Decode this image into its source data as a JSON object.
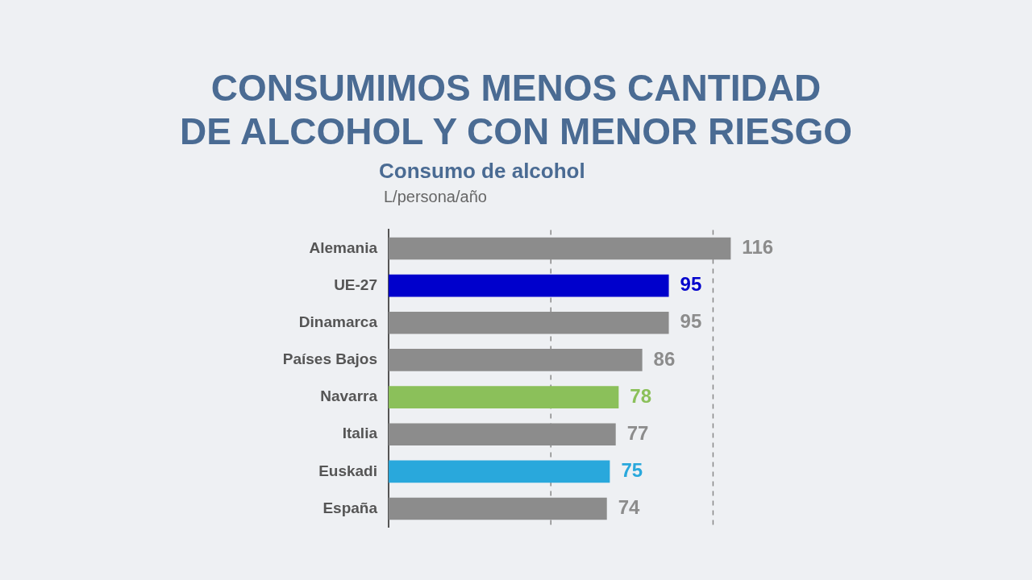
{
  "chart_data": {
    "type": "bar",
    "orientation": "horizontal",
    "title": "CONSUMIMOS MENOS CANTIDAD\nDE ALCOHOL Y CON MENOR RIESGO",
    "subtitle": "Consumo de alcohol",
    "xlabel": "L/persona/año",
    "categories": [
      "Alemania",
      "UE-27",
      "Dinamarca",
      "Países Bajos",
      "Navarra",
      "Italia",
      "Euskadi",
      "España"
    ],
    "values": [
      116,
      95,
      95,
      86,
      78,
      77,
      75,
      74
    ],
    "colors": [
      "#8c8c8c",
      "#0000cc",
      "#8c8c8c",
      "#8c8c8c",
      "#8bc05a",
      "#8c8c8c",
      "#29a8dc",
      "#8c8c8c"
    ],
    "tick_labels": "y",
    "data_labels": true,
    "ref_lines": [
      {
        "axis": "x",
        "value": 55,
        "line_style": "dashed",
        "color": "#888888"
      },
      {
        "axis": "x",
        "value": 110,
        "line_style": "dashed",
        "color": "#888888"
      }
    ]
  }
}
